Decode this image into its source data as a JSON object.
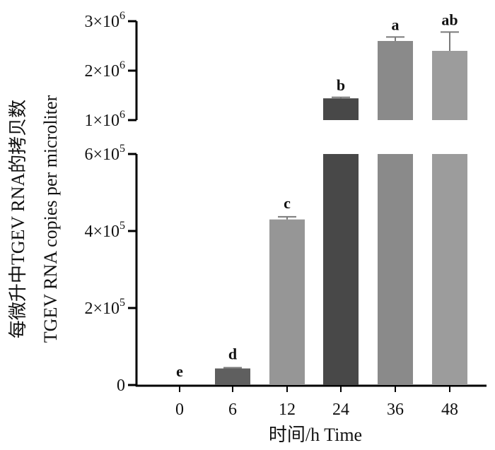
{
  "chart_data": {
    "type": "bar",
    "title": "",
    "xlabel": "时间/h Time",
    "ylabel_cn": "每微升中TGEV RNA的拷贝数",
    "ylabel_en": "TGEV RNA copies per microliter",
    "categories": [
      "0",
      "6",
      "12",
      "24",
      "36",
      "48"
    ],
    "values": [
      0,
      43000,
      430000,
      1440000,
      2600000,
      2400000
    ],
    "errors": [
      0,
      2000,
      7000,
      20000,
      80000,
      380000
    ],
    "significance": [
      "e",
      "d",
      "c",
      "b",
      "a",
      "ab"
    ],
    "colors": [
      "#4a4a4a",
      "#5f5f5f",
      "#969696",
      "#484848",
      "#8a8a8a",
      "#9c9c9c"
    ],
    "axis_break": true,
    "lower_ylim": [
      0,
      600000
    ],
    "upper_ylim": [
      1000000,
      3000000
    ],
    "lower_ticks": [
      {
        "value": 0,
        "label": "0"
      },
      {
        "value": 200000,
        "label": "2×10",
        "exp": "5"
      },
      {
        "value": 400000,
        "label": "4×10",
        "exp": "5"
      },
      {
        "value": 600000,
        "label": "6×10",
        "exp": "5"
      }
    ],
    "upper_ticks": [
      {
        "value": 1000000,
        "label": "1×10",
        "exp": "6"
      },
      {
        "value": 2000000,
        "label": "2×10",
        "exp": "6"
      },
      {
        "value": 3000000,
        "label": "3×10",
        "exp": "6"
      }
    ],
    "grid": false,
    "legend": false
  }
}
